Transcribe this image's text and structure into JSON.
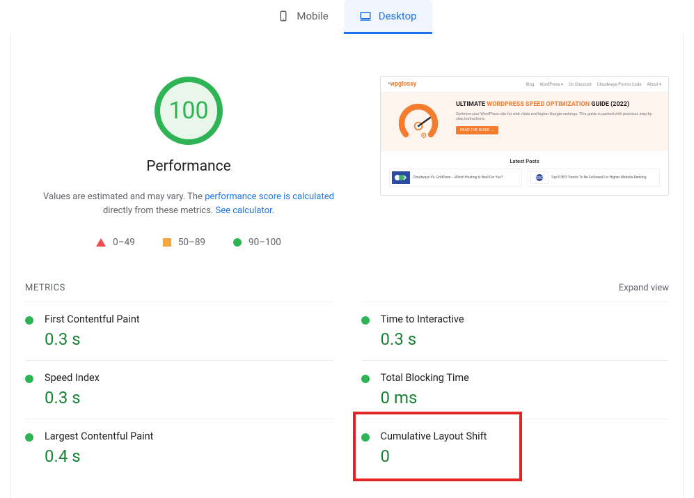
{
  "tabs": {
    "mobile": "Mobile",
    "desktop": "Desktop"
  },
  "score": {
    "value": "100",
    "label": "Performance",
    "percent": 100,
    "ring_color": "#2fb455",
    "fill_color": "#e9f6ea",
    "text_color": "#2fb455"
  },
  "disclaimer": {
    "pre": "Values are estimated and may vary. The ",
    "link1": "performance score is calculated",
    "mid": " directly from these metrics. ",
    "link2": "See calculator."
  },
  "legend": {
    "red": "0–49",
    "orange": "50–89",
    "green": "90–100",
    "red_color": "#ef4c4c",
    "orange_color": "#f4a73b",
    "green_color": "#2fb455"
  },
  "thumbnail": {
    "logo": "wpglossy",
    "nav": [
      "Blog",
      "WordPress ▾",
      "On Discount",
      "Cloudways Promo Code",
      "About ▾"
    ],
    "hero_title_1": "ULTIMATE ",
    "hero_title_accent": "WORDPRESS SPEED OPTIMIZATION",
    "hero_title_2": " GUIDE (2022)",
    "hero_sub": "Optimize your WordPress site for web vitals and higher Google rankings. This guide is packed with practical, step-by-step instructions.",
    "hero_btn": "READ THE GUIDE →",
    "latest": "Latest Posts",
    "post1": "Cloudways Vs. GridPane – Which Hosting Is Best For You?",
    "post2": "Top 8 SEO Trends To Be Followed For Higher Website Ranking",
    "accent_color": "#f47c2e",
    "hero_bg": "#fdf4ee"
  },
  "metrics": {
    "title": "METRICS",
    "expand": "Expand view",
    "items": [
      {
        "name": "First Contentful Paint",
        "value": "0.3 s",
        "status": "good"
      },
      {
        "name": "Time to Interactive",
        "value": "0.3 s",
        "status": "good"
      },
      {
        "name": "Speed Index",
        "value": "0.3 s",
        "status": "good"
      },
      {
        "name": "Total Blocking Time",
        "value": "0 ms",
        "status": "good"
      },
      {
        "name": "Largest Contentful Paint",
        "value": "0.4 s",
        "status": "good"
      },
      {
        "name": "Cumulative Layout Shift",
        "value": "0",
        "status": "good"
      }
    ],
    "good_color": "#2fb455",
    "value_color": "#188234"
  },
  "highlight": {
    "color": "#e32424",
    "target_metric_index": 5
  }
}
